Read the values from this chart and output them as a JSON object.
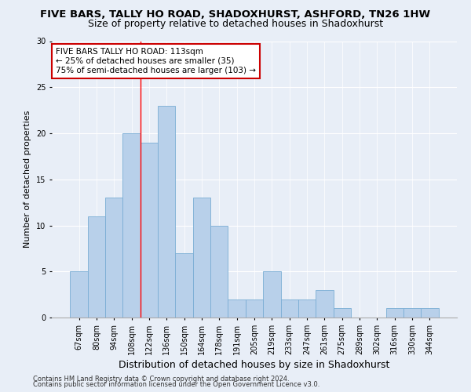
{
  "title": "FIVE BARS, TALLY HO ROAD, SHADOXHURST, ASHFORD, TN26 1HW",
  "subtitle": "Size of property relative to detached houses in Shadoxhurst",
  "xlabel": "Distribution of detached houses by size in Shadoxhurst",
  "ylabel": "Number of detached properties",
  "footnote1": "Contains HM Land Registry data © Crown copyright and database right 2024.",
  "footnote2": "Contains public sector information licensed under the Open Government Licence v3.0.",
  "categories": [
    "67sqm",
    "80sqm",
    "94sqm",
    "108sqm",
    "122sqm",
    "136sqm",
    "150sqm",
    "164sqm",
    "178sqm",
    "191sqm",
    "205sqm",
    "219sqm",
    "233sqm",
    "247sqm",
    "261sqm",
    "275sqm",
    "289sqm",
    "302sqm",
    "316sqm",
    "330sqm",
    "344sqm"
  ],
  "values": [
    5,
    11,
    13,
    20,
    19,
    23,
    7,
    13,
    10,
    2,
    2,
    5,
    2,
    2,
    3,
    1,
    0,
    0,
    1,
    1,
    1
  ],
  "bar_color": "#b8d0ea",
  "bar_edge_color": "#7aadd4",
  "annotation_line1": "FIVE BARS TALLY HO ROAD: 113sqm",
  "annotation_line2": "← 25% of detached houses are smaller (35)",
  "annotation_line3": "75% of semi-detached houses are larger (103) →",
  "annotation_box_color": "#ffffff",
  "annotation_box_edge": "#cc0000",
  "red_line_x": 3.5,
  "ylim": [
    0,
    30
  ],
  "yticks": [
    0,
    5,
    10,
    15,
    20,
    25,
    30
  ],
  "background_color": "#e8eef7",
  "plot_background": "#e8eef7",
  "grid_color": "#ffffff",
  "title_fontsize": 9.5,
  "subtitle_fontsize": 9,
  "ylabel_fontsize": 8,
  "xlabel_fontsize": 9,
  "tick_fontsize": 7,
  "annotation_fontsize": 7.5,
  "footnote_fontsize": 6
}
